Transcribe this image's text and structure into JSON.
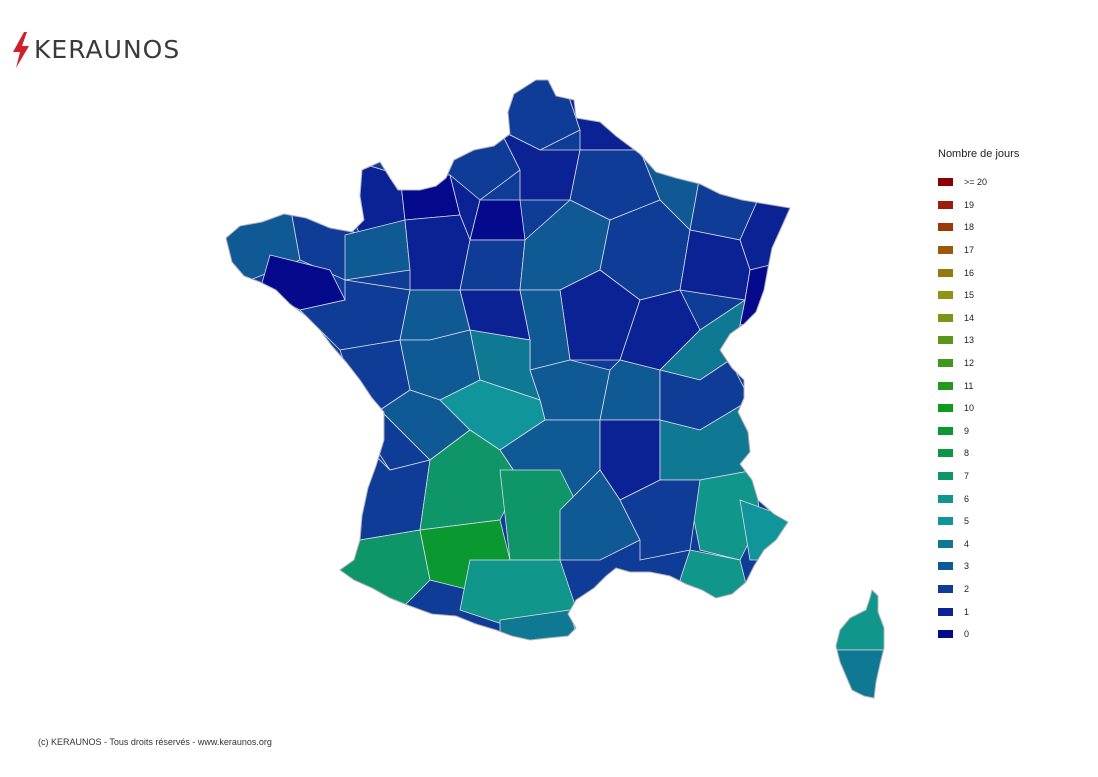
{
  "header": {
    "logo_text": "KERAUNOS",
    "logo_icon": "lightning-bolt-icon",
    "logo_accent_color": "#d0202a"
  },
  "legend": {
    "title": "Nombre de jours",
    "items": [
      {
        "label": ">= 20",
        "color": "#8b0000"
      },
      {
        "label": "19",
        "color": "#9a1e0a"
      },
      {
        "label": "18",
        "color": "#9a3a06"
      },
      {
        "label": "17",
        "color": "#9a5a0a"
      },
      {
        "label": "16",
        "color": "#967a10"
      },
      {
        "label": "15",
        "color": "#8f9418"
      },
      {
        "label": "14",
        "color": "#78961a"
      },
      {
        "label": "13",
        "color": "#5b961a"
      },
      {
        "label": "12",
        "color": "#43961c"
      },
      {
        "label": "11",
        "color": "#27961e"
      },
      {
        "label": "10",
        "color": "#0e9a1c"
      },
      {
        "label": "9",
        "color": "#0a9830"
      },
      {
        "label": "8",
        "color": "#0c964a"
      },
      {
        "label": "7",
        "color": "#0f9668"
      },
      {
        "label": "6",
        "color": "#10968a"
      },
      {
        "label": "5",
        "color": "#10969a"
      },
      {
        "label": "4",
        "color": "#0f7892"
      },
      {
        "label": "3",
        "color": "#0f5a94"
      },
      {
        "label": "2",
        "color": "#0f3c96"
      },
      {
        "label": "1",
        "color": "#0a2294"
      },
      {
        "label": "0",
        "color": "#050a8c"
      }
    ]
  },
  "footer": {
    "copyright": "(c) KERAUNOS - Tous droits réservés - www.keraunos.org"
  },
  "map": {
    "border_color": "#dcdcea",
    "regions": [
      {
        "value": 2
      },
      {
        "value": 1
      },
      {
        "value": 2
      },
      {
        "value": 1
      },
      {
        "value": 2
      },
      {
        "value": 3
      },
      {
        "value": 2
      },
      {
        "value": 1
      },
      {
        "value": 1
      },
      {
        "value": 0
      },
      {
        "value": 1
      },
      {
        "value": 0
      },
      {
        "value": 3
      },
      {
        "value": 2
      },
      {
        "value": 0
      },
      {
        "value": 3
      },
      {
        "value": 1
      },
      {
        "value": 2
      },
      {
        "value": 3
      },
      {
        "value": 2
      },
      {
        "value": 1
      },
      {
        "value": 0
      },
      {
        "value": 1
      },
      {
        "value": 1
      },
      {
        "value": 4
      },
      {
        "value": 2
      },
      {
        "value": 3
      },
      {
        "value": 1
      },
      {
        "value": 3
      },
      {
        "value": 2
      },
      {
        "value": 3
      },
      {
        "value": 4
      },
      {
        "value": 3
      },
      {
        "value": 3
      },
      {
        "value": 2
      },
      {
        "value": 2
      },
      {
        "value": 3
      },
      {
        "value": 5
      },
      {
        "value": 3
      },
      {
        "value": 1
      },
      {
        "value": 2
      },
      {
        "value": 7
      },
      {
        "value": 7
      },
      {
        "value": 9
      },
      {
        "value": 4
      },
      {
        "value": 6
      },
      {
        "value": 5
      },
      {
        "value": 6
      },
      {
        "value": 7
      },
      {
        "value": 3
      },
      {
        "value": 2
      },
      {
        "value": 6
      },
      {
        "value": 4
      }
    ]
  }
}
